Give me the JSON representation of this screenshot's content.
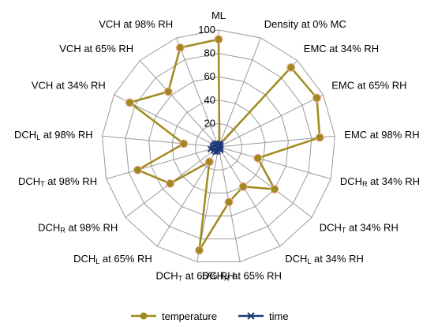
{
  "chart_data": {
    "type": "radar",
    "axes": [
      "ML",
      "Density at 0% MC",
      "EMC at 34% RH",
      "EMC at 65% RH",
      "EMC at 98% RH",
      "DCHR at 34% RH",
      "DCHT at 34% RH",
      "DCHL at 34% RH",
      "DCHR at 65% RH",
      "DCHT at 65% RH",
      "DCHL at 65% RH",
      "DCHR at 98% RH",
      "DCHT at 98% RH",
      "DCHL at 98% RH",
      "VCH at 34% RH",
      "VCH at 65% RH",
      "VCH at 98% RH"
    ],
    "axis_labels": [
      {
        "pre": "ML",
        "sub": "",
        "post": ""
      },
      {
        "pre": "Density at 0% MC",
        "sub": "",
        "post": ""
      },
      {
        "pre": "EMC at 34% RH",
        "sub": "",
        "post": ""
      },
      {
        "pre": "EMC at 65% RH",
        "sub": "",
        "post": ""
      },
      {
        "pre": "EMC at 98% RH",
        "sub": "",
        "post": ""
      },
      {
        "pre": "DCH",
        "sub": "R",
        "post": " at 34% RH"
      },
      {
        "pre": "DCH",
        "sub": "T",
        "post": " at 34% RH"
      },
      {
        "pre": "DCH",
        "sub": "L",
        "post": " at 34% RH"
      },
      {
        "pre": "DCH",
        "sub": "R",
        "post": " at 65% RH"
      },
      {
        "pre": "DCH",
        "sub": "T",
        "post": " at 65% RH"
      },
      {
        "pre": "DCH",
        "sub": "L",
        "post": " at 65% RH"
      },
      {
        "pre": "DCH",
        "sub": "R",
        "post": " at 98% RH"
      },
      {
        "pre": "DCH",
        "sub": "T",
        "post": " at 98% RH"
      },
      {
        "pre": "DCH",
        "sub": "L",
        "post": " at 98% RH"
      },
      {
        "pre": "VCH at 34% RH",
        "sub": "",
        "post": ""
      },
      {
        "pre": "VCH at 65% RH",
        "sub": "",
        "post": ""
      },
      {
        "pre": "VCH at 98% RH",
        "sub": "",
        "post": ""
      }
    ],
    "ticks": [
      "0",
      "20",
      "40",
      "60",
      "80",
      "100"
    ],
    "tick_values": [
      0,
      20,
      40,
      60,
      80,
      100
    ],
    "range": [
      0,
      100
    ],
    "grid": true,
    "legend_position": "bottom",
    "series": [
      {
        "name": "temperature",
        "color": "#a08a1e",
        "marker": "circle",
        "values": [
          92,
          2,
          92,
          94,
          87,
          35,
          60,
          40,
          48,
          90,
          15,
          52,
          72,
          30,
          85,
          64,
          91
        ]
      },
      {
        "name": "time",
        "color": "#1f3a78",
        "marker": "x",
        "values": [
          0,
          3,
          2,
          2,
          1,
          1,
          2,
          3,
          2,
          4,
          5,
          5,
          7,
          5,
          4,
          4,
          3
        ]
      }
    ],
    "title": "",
    "xlabel": "",
    "ylabel": ""
  }
}
